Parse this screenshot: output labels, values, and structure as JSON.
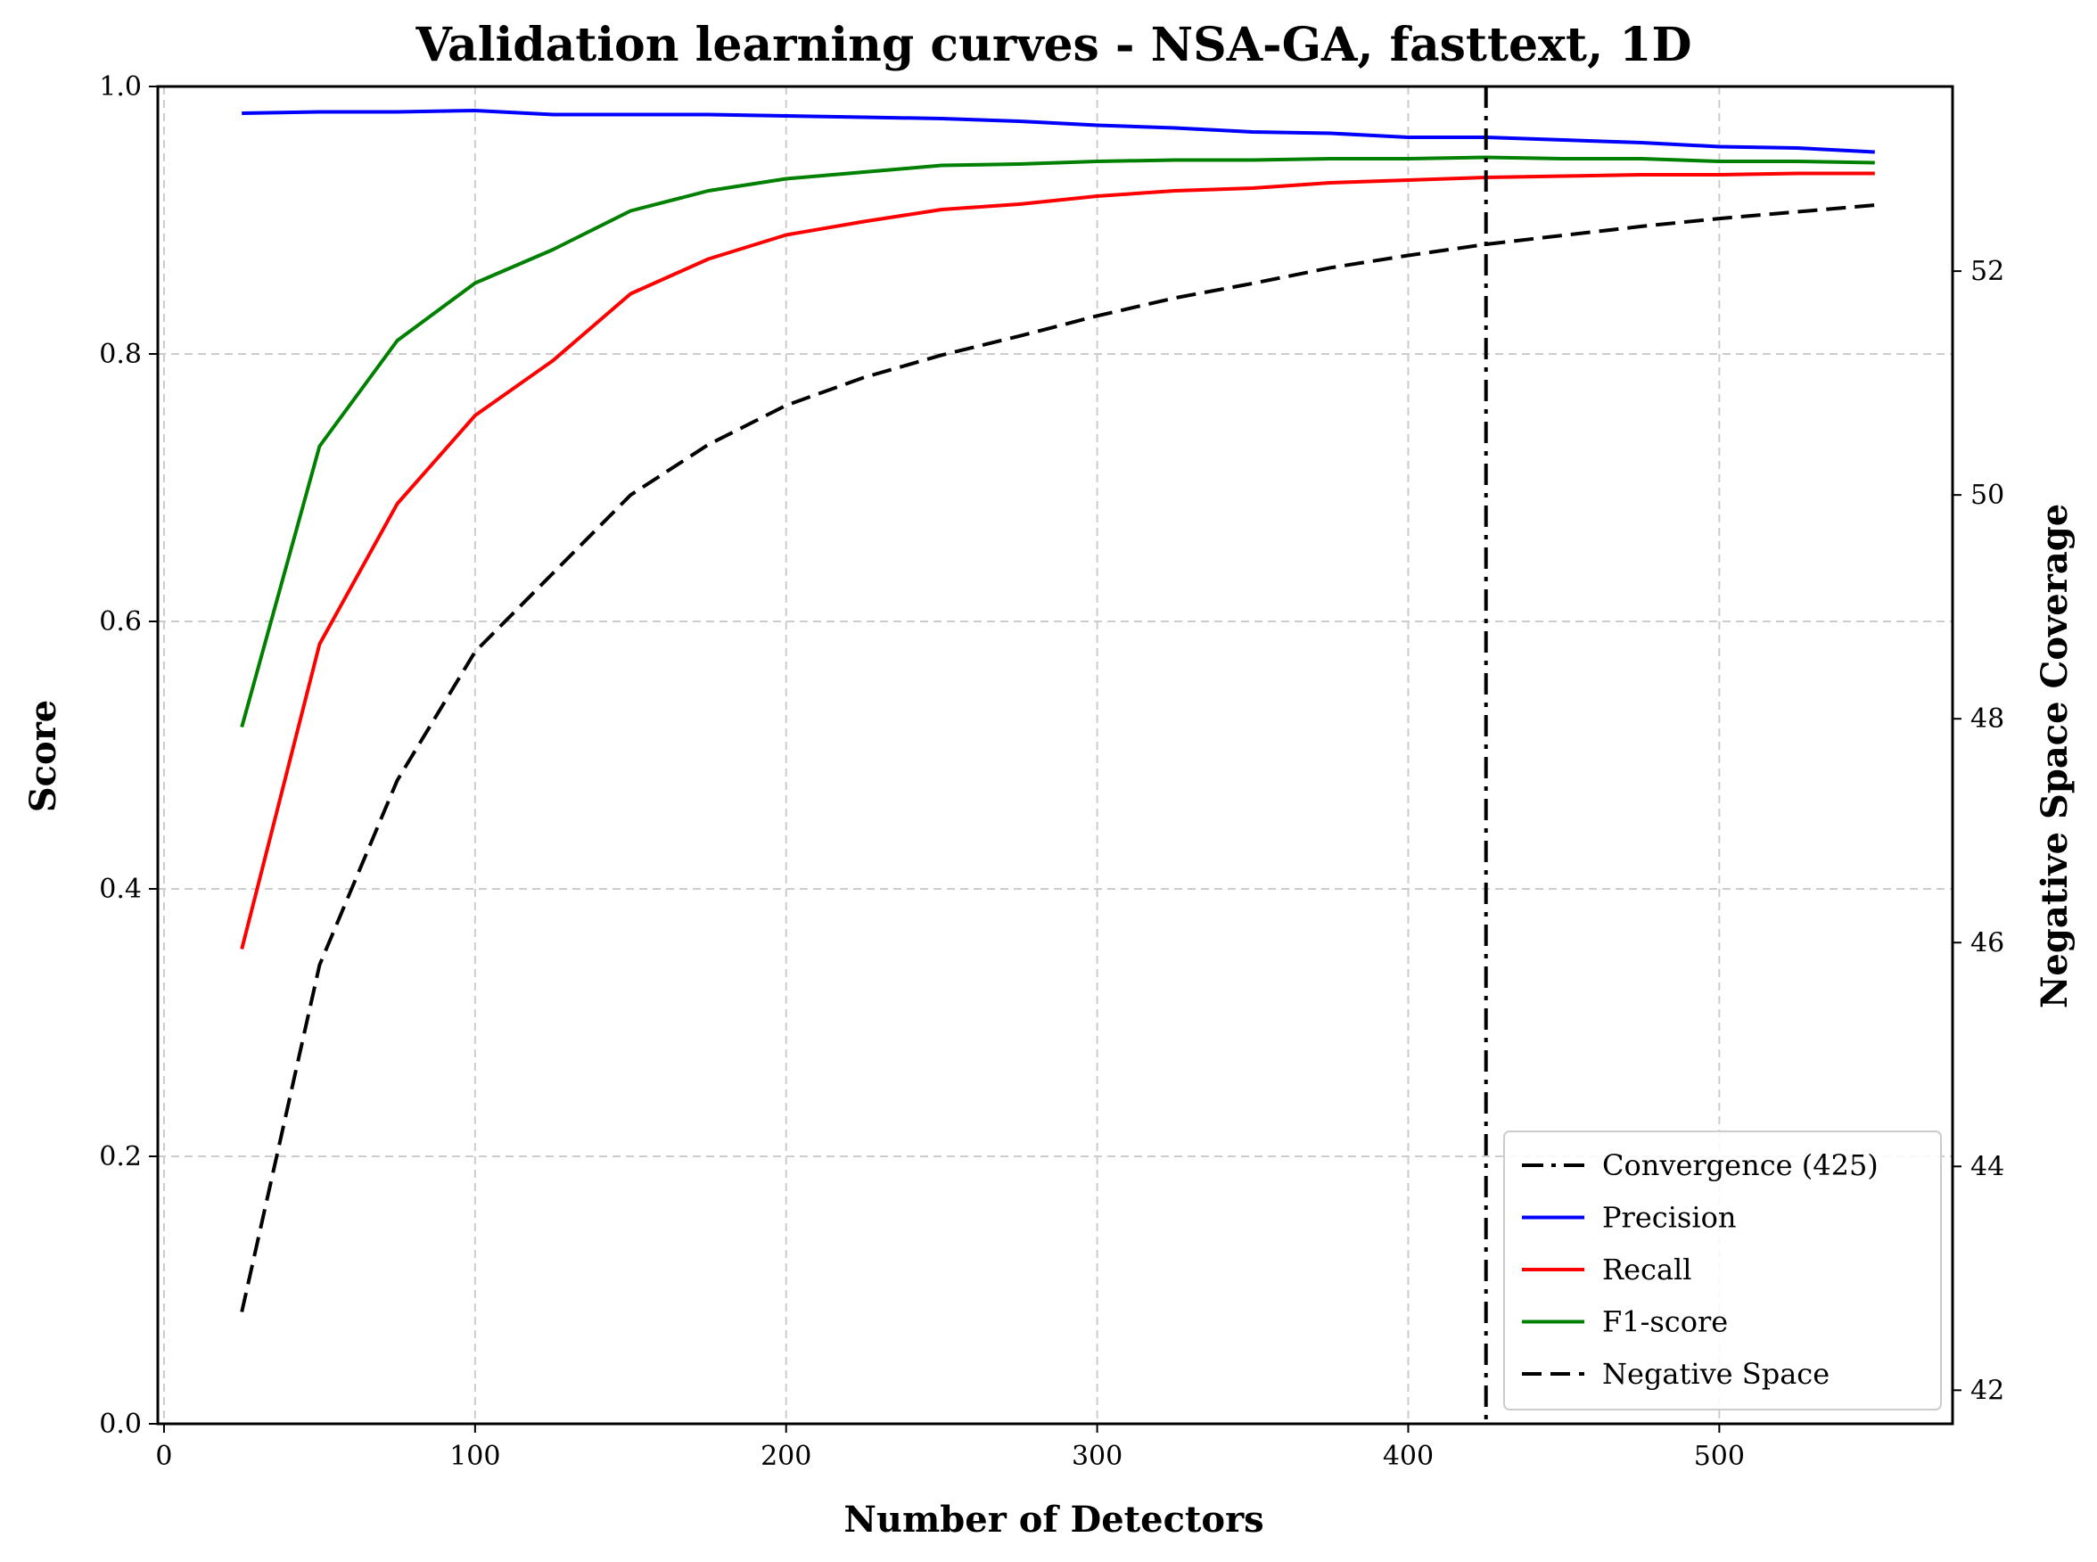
{
  "chart_data": {
    "type": "line",
    "title": "Validation learning curves - NSA-GA, fasttext, 1D",
    "xlabel": "Number of Detectors",
    "ylabel": "Score",
    "y2label": "Negative Space Coverage",
    "xlim": [
      -2,
      575
    ],
    "ylim": [
      0.0,
      1.0
    ],
    "y2lim": [
      41.7,
      53.65
    ],
    "xticks": [
      0,
      100,
      200,
      300,
      400,
      500
    ],
    "yticks": [
      0.0,
      0.2,
      0.4,
      0.6,
      0.8,
      1.0
    ],
    "y2ticks": [
      42,
      44,
      46,
      48,
      50,
      52
    ],
    "grid": true,
    "legend_position": "lower-right",
    "x": [
      25,
      50,
      75,
      100,
      125,
      150,
      175,
      200,
      225,
      250,
      275,
      300,
      325,
      350,
      375,
      400,
      425,
      450,
      475,
      500,
      525,
      550
    ],
    "series": [
      {
        "name": "Precision",
        "axis": "left",
        "color": "#0000ff",
        "style": "solid",
        "values": [
          0.98,
          0.981,
          0.981,
          0.982,
          0.979,
          0.979,
          0.979,
          0.978,
          0.977,
          0.976,
          0.974,
          0.971,
          0.969,
          0.966,
          0.965,
          0.962,
          0.962,
          0.96,
          0.958,
          0.955,
          0.954,
          0.951
        ]
      },
      {
        "name": "Recall",
        "axis": "left",
        "color": "#ff0000",
        "style": "solid",
        "values": [
          0.355,
          0.583,
          0.688,
          0.754,
          0.795,
          0.845,
          0.871,
          0.889,
          0.899,
          0.908,
          0.912,
          0.918,
          0.922,
          0.924,
          0.928,
          0.93,
          0.932,
          0.933,
          0.934,
          0.934,
          0.935,
          0.935
        ]
      },
      {
        "name": "F1-score",
        "axis": "left",
        "color": "#008000",
        "style": "solid",
        "values": [
          0.521,
          0.731,
          0.81,
          0.853,
          0.878,
          0.907,
          0.922,
          0.931,
          0.936,
          0.941,
          0.942,
          0.944,
          0.945,
          0.945,
          0.946,
          0.946,
          0.947,
          0.946,
          0.946,
          0.944,
          0.944,
          0.943
        ]
      },
      {
        "name": "Negative Space",
        "axis": "right",
        "color": "#000000",
        "style": "dashed",
        "values": [
          42.7,
          45.8,
          47.45,
          48.6,
          49.3,
          50.0,
          50.45,
          50.8,
          51.05,
          51.25,
          51.42,
          51.6,
          51.76,
          51.89,
          52.03,
          52.14,
          52.24,
          52.32,
          52.4,
          52.47,
          52.53,
          52.59
        ]
      }
    ],
    "annotations": [
      {
        "type": "vline",
        "x": 425,
        "label": "Convergence (425)",
        "color": "#000000",
        "style": "dashdot"
      }
    ],
    "legend": [
      "Convergence (425)",
      "Precision",
      "Recall",
      "F1-score",
      "Negative Space"
    ]
  }
}
